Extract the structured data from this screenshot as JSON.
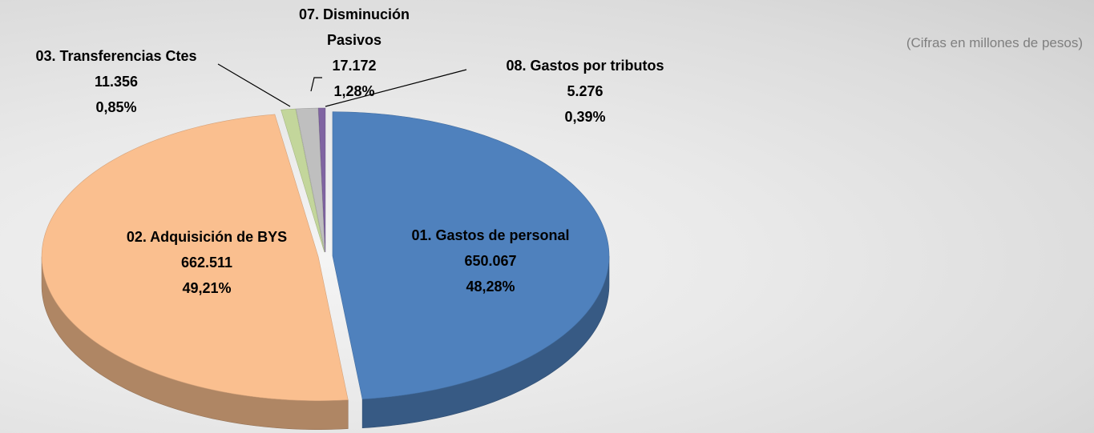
{
  "chart_data": {
    "type": "pie",
    "subtitle": "(Cifras en millones de pesos)",
    "categories": [
      "01. Gastos de personal",
      "02. Adquisición de BYS",
      "03. Transferencias Ctes",
      "07. Disminución Pasivos",
      "08. Gastos por tributos"
    ],
    "values": [
      650067,
      662511,
      11356,
      17172,
      5276
    ],
    "value_labels": [
      "650.067",
      "662.511",
      "11.356",
      "17.172",
      "5.276"
    ],
    "percentages": [
      48.28,
      49.21,
      0.85,
      1.28,
      0.39
    ],
    "percentage_labels": [
      "48,28%",
      "49,21%",
      "0,85%",
      "1,28%",
      "0,39%"
    ],
    "colors": [
      "#4f81bd",
      "#fabf8f",
      "#c3d69b",
      "#bfbfbf",
      "#8064a2"
    ]
  }
}
